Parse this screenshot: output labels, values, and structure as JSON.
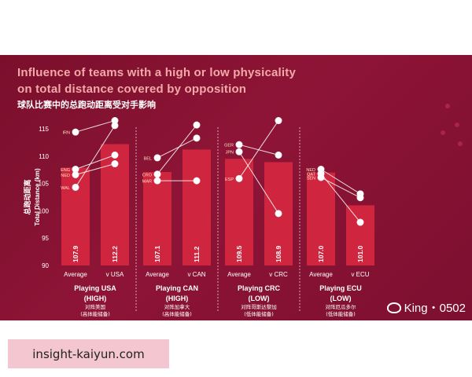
{
  "slide": {
    "title_line1": "Influence of teams with a high or low physicality",
    "title_line2": "on total distance covered by opposition",
    "subtitle": "球队比赛中的总跑动距离受对手影响"
  },
  "watermark": "King・0502",
  "banner": "insight-kaiyun.com",
  "colors": {
    "background": "#8a1434",
    "bar": "#d0253f",
    "title": "#f4a9a9",
    "text": "#ffffff"
  },
  "chart_data": {
    "type": "bar",
    "ylabel": "Total Distance (km)",
    "ylabel_cn": "总跑动距离",
    "ylim": [
      90,
      115
    ],
    "yticks": [
      90,
      95,
      100,
      105,
      110,
      115
    ],
    "groups": [
      {
        "title": "Playing USA",
        "level": "(HIGH)",
        "cn1": "对阵美国",
        "cn2": "(高体能储备)",
        "bars": [
          {
            "label": "Average",
            "value": 107.9
          },
          {
            "label": "v USA",
            "value": 112.2
          }
        ],
        "teams": [
          {
            "code": "IRN",
            "flag": "iran-flag",
            "average": 114.4,
            "versus": 116.5
          },
          {
            "code": "ENG",
            "flag": "england-flag",
            "average": 107.6,
            "versus": 110.2
          },
          {
            "code": "NED",
            "flag": "netherlands-flag",
            "average": 106.6,
            "versus": 108.6
          },
          {
            "code": "WAL",
            "flag": "wales-flag",
            "average": 104.3,
            "versus": 115.6
          }
        ]
      },
      {
        "title": "Playing CAN",
        "level": "(HIGH)",
        "cn1": "对阵加拿大",
        "cn2": "(高体能储备)",
        "bars": [
          {
            "label": "Average",
            "value": 107.1
          },
          {
            "label": "v CAN",
            "value": 111.2
          }
        ],
        "teams": [
          {
            "code": "BEL",
            "flag": "belgium-flag",
            "average": 109.7,
            "versus": 113.3
          },
          {
            "code": "CRO",
            "flag": "croatia-flag",
            "average": 106.7,
            "versus": 115.7
          },
          {
            "code": "MAR",
            "flag": "morocco-flag",
            "average": 105.5,
            "versus": 105.5
          }
        ]
      },
      {
        "title": "Playing CRC",
        "level": "(LOW)",
        "cn1": "对阵哥斯达黎加",
        "cn2": "(低体能储备)",
        "bars": [
          {
            "label": "Average",
            "value": 109.5
          },
          {
            "label": "v CRC",
            "value": 108.9
          }
        ],
        "teams": [
          {
            "code": "GER",
            "flag": "germany-flag",
            "average": 112.1,
            "versus": 110.2
          },
          {
            "code": "JPN",
            "flag": "japan-flag",
            "average": 110.8,
            "versus": 99.5
          },
          {
            "code": "ESP",
            "flag": "spain-flag",
            "average": 105.9,
            "versus": 116.5
          }
        ]
      },
      {
        "title": "Playing ECU",
        "level": "(LOW)",
        "cn1": "对阵厄瓜多尔",
        "cn2": "(低体能储备)",
        "bars": [
          {
            "label": "Average",
            "value": 107.0
          },
          {
            "label": "v ECU",
            "value": 101.0
          }
        ],
        "teams": [
          {
            "code": "NED",
            "flag": "netherlands-flag",
            "average": 107.6,
            "versus": 103.1
          },
          {
            "code": "QAT",
            "flag": "qatar-flag",
            "average": 106.8,
            "versus": 97.9
          },
          {
            "code": "SEN",
            "flag": "senegal-flag",
            "average": 106.1,
            "versus": 102.4
          }
        ]
      }
    ]
  }
}
